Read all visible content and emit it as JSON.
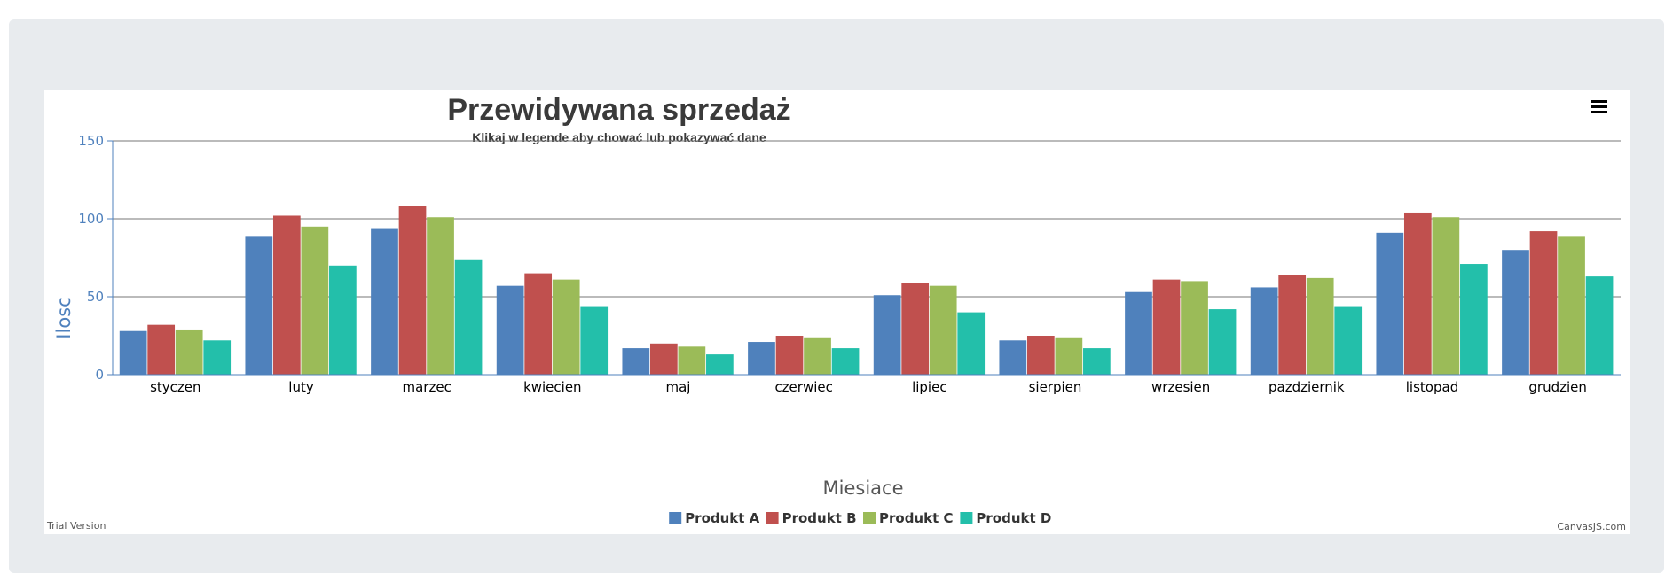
{
  "chart_data": {
    "type": "bar",
    "title": "Przewidywana sprzedaż",
    "subtitle": "Klikaj w legende aby chować lub pokazywać dane",
    "xlabel": "Miesiace",
    "ylabel": "Ilosc",
    "ylim": [
      0,
      150
    ],
    "yticks": [
      "0",
      "50",
      "100",
      "150"
    ],
    "grid": true,
    "legend_position": "bottom-center",
    "categories": [
      "styczen",
      "luty",
      "marzec",
      "kwiecien",
      "maj",
      "czerwiec",
      "lipiec",
      "sierpien",
      "wrzesien",
      "pazdziernik",
      "listopad",
      "grudzien"
    ],
    "series": [
      {
        "name": "Produkt A",
        "color": "#4f81bc",
        "values": [
          28,
          89,
          94,
          57,
          17,
          21,
          51,
          22,
          53,
          56,
          91,
          80
        ]
      },
      {
        "name": "Produkt B",
        "color": "#c0504e",
        "values": [
          32,
          102,
          108,
          65,
          20,
          25,
          59,
          25,
          61,
          64,
          104,
          92
        ]
      },
      {
        "name": "Produkt C",
        "color": "#9bbb58",
        "values": [
          29,
          95,
          101,
          61,
          18,
          24,
          57,
          24,
          60,
          62,
          101,
          89
        ]
      },
      {
        "name": "Produkt D",
        "color": "#23bfaa",
        "values": [
          22,
          70,
          74,
          44,
          13,
          17,
          40,
          17,
          42,
          44,
          71,
          63
        ]
      }
    ]
  },
  "footer": {
    "trial_text": "Trial Version",
    "credit_text": "CanvasJS.com"
  },
  "menu": {
    "icon": "hamburger-menu-icon"
  }
}
